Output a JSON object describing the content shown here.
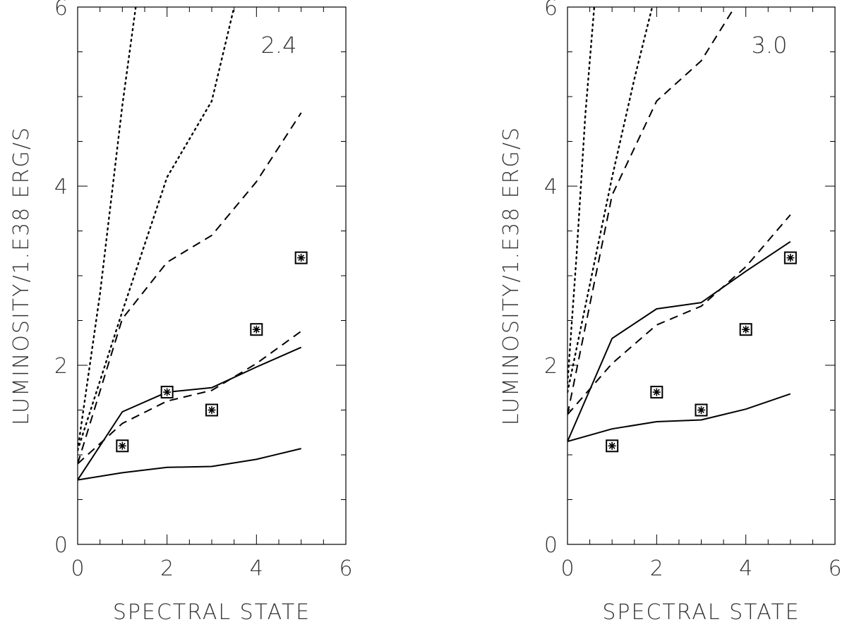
{
  "chart_data": [
    {
      "type": "line",
      "panel_label": "2.4",
      "xlabel": "SPECTRAL STATE",
      "ylabel": "LUMINOSITY/1.E38 ERG/S",
      "xlim": [
        0,
        6
      ],
      "ylim": [
        0,
        6
      ],
      "xticks": [
        "0",
        "2",
        "4",
        "6"
      ],
      "yticks": [
        "0",
        "2",
        "4",
        "6"
      ],
      "series": [
        {
          "name": "solid-lower",
          "style": "solid",
          "x": [
            0,
            1,
            2,
            3,
            4,
            5
          ],
          "y": [
            0.72,
            0.8,
            0.86,
            0.87,
            0.95,
            1.07
          ]
        },
        {
          "name": "solid-upper",
          "style": "solid",
          "x": [
            0,
            1,
            2,
            3,
            4,
            5
          ],
          "y": [
            0.72,
            1.48,
            1.7,
            1.75,
            1.98,
            2.2
          ]
        },
        {
          "name": "dashed-lower",
          "style": "dashed",
          "x": [
            0,
            1,
            2,
            3,
            4,
            5
          ],
          "y": [
            0.9,
            1.35,
            1.6,
            1.72,
            2.02,
            2.38
          ]
        },
        {
          "name": "dashed-upper",
          "style": "dashed",
          "x": [
            0,
            1,
            2,
            3,
            4,
            5
          ],
          "y": [
            0.9,
            2.52,
            3.15,
            3.45,
            4.05,
            4.82
          ]
        },
        {
          "name": "dotted-lower",
          "style": "dotted",
          "x": [
            0,
            1,
            2,
            3,
            3.5
          ],
          "y": [
            1.05,
            2.6,
            4.1,
            4.95,
            6.0
          ]
        },
        {
          "name": "dotted-upper",
          "style": "dotted",
          "x": [
            0,
            0.5,
            1,
            1.3
          ],
          "y": [
            1.05,
            2.8,
            4.9,
            6.0
          ]
        }
      ],
      "points": {
        "name": "observed",
        "x": [
          1,
          2,
          3,
          4,
          5
        ],
        "y": [
          1.1,
          1.7,
          1.5,
          2.4,
          3.2
        ]
      }
    },
    {
      "type": "line",
      "panel_label": "3.0",
      "xlabel": "SPECTRAL STATE",
      "ylabel": "LUMINOSITY/1.E38 ERG/S",
      "xlim": [
        0,
        6
      ],
      "ylim": [
        0,
        6
      ],
      "xticks": [
        "0",
        "2",
        "4",
        "6"
      ],
      "yticks": [
        "0",
        "2",
        "4",
        "6"
      ],
      "series": [
        {
          "name": "solid-lower",
          "style": "solid",
          "x": [
            0,
            1,
            2,
            3,
            4,
            5
          ],
          "y": [
            1.15,
            1.29,
            1.37,
            1.39,
            1.51,
            1.68
          ]
        },
        {
          "name": "solid-upper",
          "style": "solid",
          "x": [
            0,
            1,
            2,
            3,
            4,
            5
          ],
          "y": [
            1.15,
            2.3,
            2.63,
            2.7,
            3.05,
            3.38
          ]
        },
        {
          "name": "dashed-lower",
          "style": "dashed",
          "x": [
            0,
            1,
            2,
            3,
            4,
            5
          ],
          "y": [
            1.45,
            2.02,
            2.45,
            2.66,
            3.1,
            3.68
          ]
        },
        {
          "name": "dashed-upper",
          "style": "dashed",
          "x": [
            0,
            1,
            2,
            3,
            3.75
          ],
          "y": [
            1.45,
            3.9,
            4.95,
            5.4,
            6.0
          ]
        },
        {
          "name": "dotted-lower",
          "style": "dotted",
          "x": [
            0,
            0.5,
            1,
            1.5,
            1.9
          ],
          "y": [
            1.7,
            2.9,
            4.1,
            5.2,
            6.0
          ]
        },
        {
          "name": "dotted-upper",
          "style": "dotted",
          "x": [
            0,
            0.2,
            0.4,
            0.6
          ],
          "y": [
            1.8,
            3.2,
            4.8,
            6.0
          ]
        }
      ],
      "points": {
        "name": "observed",
        "x": [
          1,
          2,
          3,
          4,
          5
        ],
        "y": [
          1.1,
          1.7,
          1.5,
          2.4,
          3.2
        ]
      }
    }
  ]
}
